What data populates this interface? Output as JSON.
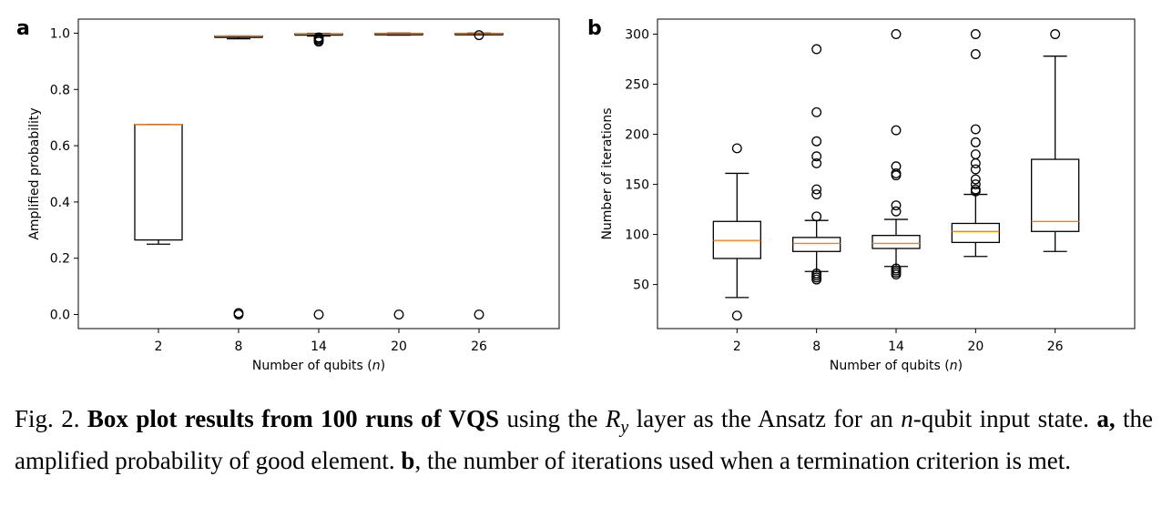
{
  "chart_data": [
    {
      "type": "box",
      "panel": "a",
      "xlabel_text": "Number of qubits (",
      "xlabel_var": "n",
      "xlabel_end": ")",
      "ylabel": "Amplified probability",
      "categories": [
        "2",
        "8",
        "14",
        "20",
        "26"
      ],
      "ylim": [
        -0.05,
        1.05
      ],
      "yticks": [
        0.0,
        0.2,
        0.4,
        0.6,
        0.8,
        1.0
      ],
      "ytick_labels": [
        "0.0",
        "0.2",
        "0.4",
        "0.6",
        "0.8",
        "1.0"
      ],
      "series": [
        {
          "category": "2",
          "whislo": 0.25,
          "q1": 0.265,
          "med": 0.675,
          "q3": 0.675,
          "whishi": 0.675,
          "fliers": []
        },
        {
          "category": "8",
          "whislo": 0.98,
          "q1": 0.985,
          "med": 0.99,
          "q3": 0.99,
          "whishi": 0.99,
          "fliers": [
            0.0,
            0.005
          ]
        },
        {
          "category": "14",
          "whislo": 0.99,
          "q1": 0.994,
          "med": 0.997,
          "q3": 0.998,
          "whishi": 0.999,
          "fliers": [
            0.0,
            0.97,
            0.975,
            0.98,
            0.985
          ]
        },
        {
          "category": "20",
          "whislo": 0.993,
          "q1": 0.996,
          "med": 0.998,
          "q3": 0.999,
          "whishi": 1.0,
          "fliers": [
            0.0
          ]
        },
        {
          "category": "26",
          "whislo": 0.995,
          "q1": 0.997,
          "med": 0.998,
          "q3": 0.999,
          "whishi": 1.0,
          "fliers": [
            0.0,
            0.993
          ]
        }
      ],
      "colors": {
        "box": "#000000",
        "median": "#ff7f0e"
      }
    },
    {
      "type": "box",
      "panel": "b",
      "xlabel_text": "Number of qubits (",
      "xlabel_var": "n",
      "xlabel_end": ")",
      "ylabel": "Number of iterations",
      "categories": [
        "2",
        "8",
        "14",
        "20",
        "26"
      ],
      "ylim": [
        6,
        315
      ],
      "yticks": [
        50,
        100,
        150,
        200,
        250,
        300
      ],
      "ytick_labels": [
        "50",
        "100",
        "150",
        "200",
        "250",
        "300"
      ],
      "series": [
        {
          "category": "2",
          "whislo": 37,
          "q1": 76,
          "med": 94,
          "q3": 113,
          "whishi": 161,
          "fliers": [
            19,
            186
          ]
        },
        {
          "category": "8",
          "whislo": 63,
          "q1": 83,
          "med": 91,
          "q3": 97,
          "whishi": 114,
          "fliers": [
            55,
            57,
            59,
            61,
            118,
            140,
            145,
            171,
            178,
            193,
            222,
            285
          ]
        },
        {
          "category": "14",
          "whislo": 68,
          "q1": 86,
          "med": 91,
          "q3": 99,
          "whishi": 115,
          "fliers": [
            60,
            62,
            64,
            66,
            123,
            129,
            159,
            161,
            168,
            204,
            300
          ]
        },
        {
          "category": "20",
          "whislo": 78,
          "q1": 92,
          "med": 103,
          "q3": 111,
          "whishi": 140,
          "fliers": [
            143,
            145,
            150,
            155,
            165,
            171,
            180,
            192,
            205,
            280,
            300
          ]
        },
        {
          "category": "26",
          "whislo": 83,
          "q1": 103,
          "med": 113,
          "q3": 175,
          "whishi": 278,
          "fliers": [
            300
          ]
        }
      ],
      "colors": {
        "box": "#000000",
        "median": "#ff7f0e"
      }
    }
  ],
  "caption": {
    "fig": "Fig. 2. ",
    "bold_title": "Box plot results from 100 runs of VQS",
    "t1": " using the ",
    "r_base": "R",
    "r_sub": "y",
    "t2": " layer as the Ansatz for an ",
    "n_var": "n",
    "t3": "-qubit input state. ",
    "a_label": "a,",
    "t4": " the amplified probability of good element. ",
    "b_label": "b",
    "t5": ", the number of iterations used when a termination criterion is met."
  }
}
